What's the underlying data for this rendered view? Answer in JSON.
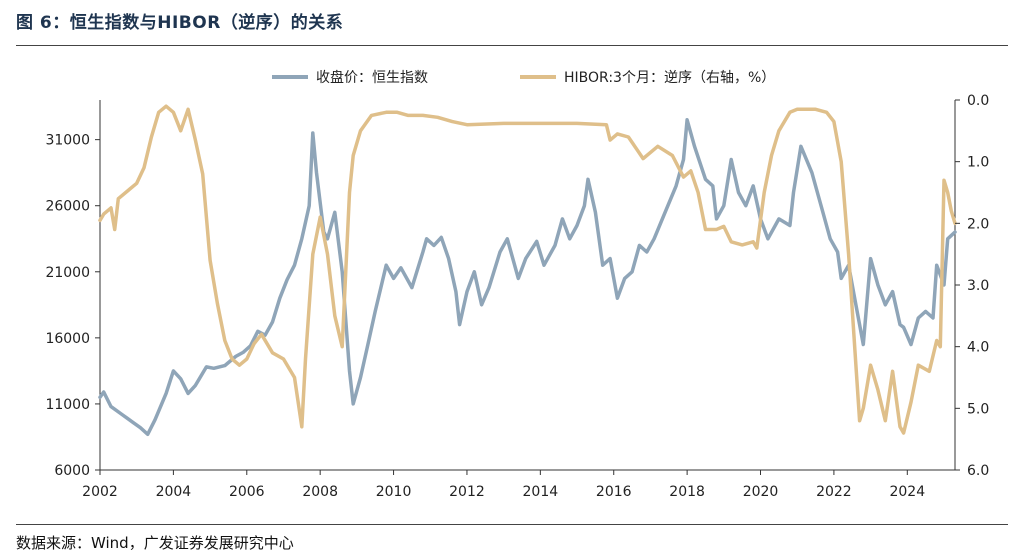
{
  "figure": {
    "title": "图 6：恒生指数与HIBOR（逆序）的关系",
    "source": "数据来源：Wind，广发证券发展研究中心"
  },
  "colors": {
    "hsi": "#8fa5b8",
    "hibor": "#dfbf8a",
    "axis": "#333333",
    "title": "#1f3550"
  },
  "chart_data": {
    "type": "line",
    "title": "",
    "xlabel": "",
    "ylabel": "",
    "x_ticks": [
      "2002",
      "2004",
      "2006",
      "2008",
      "2010",
      "2012",
      "2014",
      "2016",
      "2018",
      "2020",
      "2022",
      "2024"
    ],
    "x_range": [
      2002.0,
      2025.3
    ],
    "y_left": {
      "range": [
        6000,
        34000
      ],
      "ticks": [
        "6000",
        "11000",
        "16000",
        "21000",
        "26000",
        "31000"
      ]
    },
    "y_right": {
      "range": [
        0.0,
        6.0
      ],
      "inverted": true,
      "ticks": [
        "0.0",
        "1.0",
        "2.0",
        "3.0",
        "4.0",
        "5.0",
        "6.0"
      ]
    },
    "legend_position": "top",
    "series": [
      {
        "name": "收盘价：恒生指数",
        "axis": "left",
        "points": [
          [
            2002.0,
            11500
          ],
          [
            2002.1,
            11900
          ],
          [
            2002.3,
            10800
          ],
          [
            2002.6,
            10200
          ],
          [
            2002.9,
            9600
          ],
          [
            2003.1,
            9200
          ],
          [
            2003.3,
            8700
          ],
          [
            2003.5,
            9800
          ],
          [
            2003.8,
            11800
          ],
          [
            2004.0,
            13500
          ],
          [
            2004.2,
            12900
          ],
          [
            2004.4,
            11800
          ],
          [
            2004.6,
            12400
          ],
          [
            2004.9,
            13800
          ],
          [
            2005.1,
            13700
          ],
          [
            2005.4,
            13900
          ],
          [
            2005.7,
            14600
          ],
          [
            2005.9,
            14900
          ],
          [
            2006.1,
            15400
          ],
          [
            2006.3,
            16500
          ],
          [
            2006.5,
            16200
          ],
          [
            2006.7,
            17200
          ],
          [
            2006.9,
            19000
          ],
          [
            2007.1,
            20400
          ],
          [
            2007.3,
            21500
          ],
          [
            2007.5,
            23500
          ],
          [
            2007.7,
            26000
          ],
          [
            2007.8,
            31500
          ],
          [
            2007.9,
            28500
          ],
          [
            2008.1,
            24000
          ],
          [
            2008.2,
            23500
          ],
          [
            2008.4,
            25500
          ],
          [
            2008.6,
            21000
          ],
          [
            2008.8,
            13500
          ],
          [
            2008.9,
            11000
          ],
          [
            2009.1,
            13000
          ],
          [
            2009.3,
            15500
          ],
          [
            2009.5,
            18000
          ],
          [
            2009.8,
            21500
          ],
          [
            2010.0,
            20500
          ],
          [
            2010.2,
            21300
          ],
          [
            2010.5,
            19800
          ],
          [
            2010.8,
            22500
          ],
          [
            2010.9,
            23500
          ],
          [
            2011.1,
            23000
          ],
          [
            2011.3,
            23600
          ],
          [
            2011.5,
            22000
          ],
          [
            2011.7,
            19500
          ],
          [
            2011.8,
            17000
          ],
          [
            2012.0,
            19500
          ],
          [
            2012.2,
            21000
          ],
          [
            2012.4,
            18500
          ],
          [
            2012.6,
            19800
          ],
          [
            2012.9,
            22500
          ],
          [
            2013.1,
            23500
          ],
          [
            2013.4,
            20500
          ],
          [
            2013.6,
            22000
          ],
          [
            2013.9,
            23300
          ],
          [
            2014.1,
            21500
          ],
          [
            2014.4,
            23000
          ],
          [
            2014.6,
            25000
          ],
          [
            2014.8,
            23500
          ],
          [
            2015.0,
            24500
          ],
          [
            2015.2,
            26000
          ],
          [
            2015.3,
            28000
          ],
          [
            2015.5,
            25500
          ],
          [
            2015.7,
            21500
          ],
          [
            2015.9,
            22000
          ],
          [
            2016.1,
            19000
          ],
          [
            2016.3,
            20500
          ],
          [
            2016.5,
            21000
          ],
          [
            2016.7,
            23000
          ],
          [
            2016.9,
            22500
          ],
          [
            2017.1,
            23500
          ],
          [
            2017.4,
            25500
          ],
          [
            2017.7,
            27500
          ],
          [
            2017.9,
            29500
          ],
          [
            2018.0,
            32500
          ],
          [
            2018.2,
            30500
          ],
          [
            2018.5,
            28000
          ],
          [
            2018.7,
            27500
          ],
          [
            2018.8,
            25000
          ],
          [
            2019.0,
            26000
          ],
          [
            2019.2,
            29500
          ],
          [
            2019.4,
            27000
          ],
          [
            2019.6,
            26000
          ],
          [
            2019.8,
            27500
          ],
          [
            2020.0,
            25000
          ],
          [
            2020.2,
            23500
          ],
          [
            2020.5,
            25000
          ],
          [
            2020.8,
            24500
          ],
          [
            2020.9,
            27000
          ],
          [
            2021.1,
            30500
          ],
          [
            2021.4,
            28500
          ],
          [
            2021.7,
            25500
          ],
          [
            2021.9,
            23500
          ],
          [
            2022.1,
            22500
          ],
          [
            2022.2,
            20500
          ],
          [
            2022.4,
            21500
          ],
          [
            2022.6,
            18500
          ],
          [
            2022.8,
            15500
          ],
          [
            2023.0,
            22000
          ],
          [
            2023.2,
            20000
          ],
          [
            2023.4,
            18500
          ],
          [
            2023.6,
            19500
          ],
          [
            2023.8,
            17000
          ],
          [
            2023.9,
            16800
          ],
          [
            2024.1,
            15500
          ],
          [
            2024.3,
            17500
          ],
          [
            2024.5,
            18000
          ],
          [
            2024.7,
            17500
          ],
          [
            2024.8,
            21500
          ],
          [
            2025.0,
            20000
          ],
          [
            2025.1,
            23500
          ],
          [
            2025.3,
            24000
          ]
        ]
      },
      {
        "name": "HIBOR:3个月：逆序（右轴，%）",
        "axis": "right",
        "points": [
          [
            2002.0,
            1.95
          ],
          [
            2002.1,
            1.85
          ],
          [
            2002.3,
            1.75
          ],
          [
            2002.4,
            2.1
          ],
          [
            2002.5,
            1.6
          ],
          [
            2002.8,
            1.45
          ],
          [
            2003.0,
            1.35
          ],
          [
            2003.2,
            1.1
          ],
          [
            2003.4,
            0.6
          ],
          [
            2003.6,
            0.2
          ],
          [
            2003.8,
            0.1
          ],
          [
            2004.0,
            0.2
          ],
          [
            2004.2,
            0.5
          ],
          [
            2004.4,
            0.15
          ],
          [
            2004.6,
            0.65
          ],
          [
            2004.8,
            1.2
          ],
          [
            2005.0,
            2.6
          ],
          [
            2005.2,
            3.3
          ],
          [
            2005.4,
            3.9
          ],
          [
            2005.6,
            4.2
          ],
          [
            2005.8,
            4.3
          ],
          [
            2006.0,
            4.2
          ],
          [
            2006.2,
            3.95
          ],
          [
            2006.4,
            3.8
          ],
          [
            2006.7,
            4.1
          ],
          [
            2007.0,
            4.2
          ],
          [
            2007.3,
            4.5
          ],
          [
            2007.5,
            5.3
          ],
          [
            2007.6,
            4.2
          ],
          [
            2007.8,
            2.5
          ],
          [
            2008.0,
            1.9
          ],
          [
            2008.2,
            2.5
          ],
          [
            2008.4,
            3.5
          ],
          [
            2008.6,
            4.0
          ],
          [
            2008.8,
            1.5
          ],
          [
            2008.9,
            0.9
          ],
          [
            2009.1,
            0.5
          ],
          [
            2009.4,
            0.25
          ],
          [
            2009.8,
            0.2
          ],
          [
            2010.1,
            0.2
          ],
          [
            2010.4,
            0.25
          ],
          [
            2010.8,
            0.25
          ],
          [
            2011.2,
            0.28
          ],
          [
            2011.6,
            0.35
          ],
          [
            2012.0,
            0.4
          ],
          [
            2013.0,
            0.38
          ],
          [
            2014.0,
            0.38
          ],
          [
            2015.0,
            0.38
          ],
          [
            2015.8,
            0.4
          ],
          [
            2015.9,
            0.65
          ],
          [
            2016.1,
            0.55
          ],
          [
            2016.4,
            0.6
          ],
          [
            2016.8,
            0.95
          ],
          [
            2017.2,
            0.75
          ],
          [
            2017.6,
            0.9
          ],
          [
            2017.9,
            1.25
          ],
          [
            2018.1,
            1.15
          ],
          [
            2018.3,
            1.5
          ],
          [
            2018.5,
            2.1
          ],
          [
            2018.8,
            2.1
          ],
          [
            2019.0,
            2.05
          ],
          [
            2019.2,
            2.3
          ],
          [
            2019.5,
            2.35
          ],
          [
            2019.8,
            2.3
          ],
          [
            2019.9,
            2.4
          ],
          [
            2020.1,
            1.5
          ],
          [
            2020.3,
            0.9
          ],
          [
            2020.5,
            0.5
          ],
          [
            2020.8,
            0.2
          ],
          [
            2021.0,
            0.15
          ],
          [
            2021.5,
            0.15
          ],
          [
            2021.8,
            0.2
          ],
          [
            2022.0,
            0.35
          ],
          [
            2022.2,
            1.0
          ],
          [
            2022.4,
            2.5
          ],
          [
            2022.6,
            4.3
          ],
          [
            2022.7,
            5.2
          ],
          [
            2022.8,
            5.0
          ],
          [
            2023.0,
            4.3
          ],
          [
            2023.2,
            4.7
          ],
          [
            2023.4,
            5.2
          ],
          [
            2023.6,
            4.4
          ],
          [
            2023.8,
            5.3
          ],
          [
            2023.9,
            5.4
          ],
          [
            2024.1,
            4.9
          ],
          [
            2024.3,
            4.3
          ],
          [
            2024.6,
            4.4
          ],
          [
            2024.8,
            3.9
          ],
          [
            2024.9,
            4.0
          ],
          [
            2025.0,
            1.3
          ],
          [
            2025.1,
            1.5
          ],
          [
            2025.2,
            1.8
          ],
          [
            2025.3,
            2.0
          ]
        ]
      }
    ]
  }
}
